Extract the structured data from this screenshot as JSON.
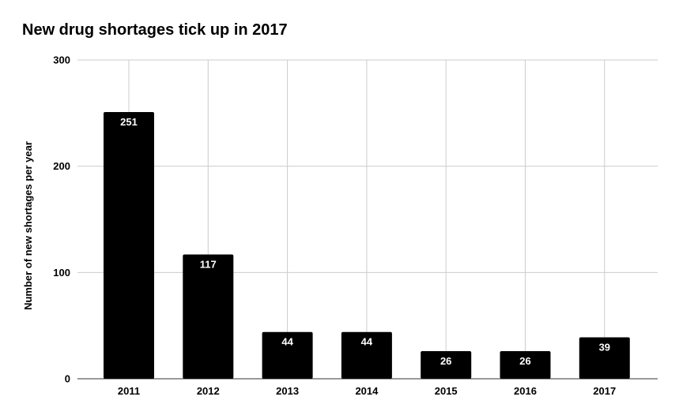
{
  "chart_data": {
    "type": "bar",
    "title": "New drug shortages tick up in 2017",
    "xlabel": "",
    "ylabel": "Number of new shortages per year",
    "categories": [
      "2011",
      "2012",
      "2013",
      "2014",
      "2015",
      "2016",
      "2017"
    ],
    "values": [
      251,
      117,
      44,
      44,
      26,
      26,
      39
    ],
    "ylim": [
      0,
      300
    ],
    "yticks": [
      0,
      100,
      200,
      300
    ],
    "grid": true,
    "legend": "none",
    "data_labels": true,
    "colors": {
      "bar": "#000000",
      "grid": "#cccccc",
      "label": "#ffffff"
    }
  }
}
